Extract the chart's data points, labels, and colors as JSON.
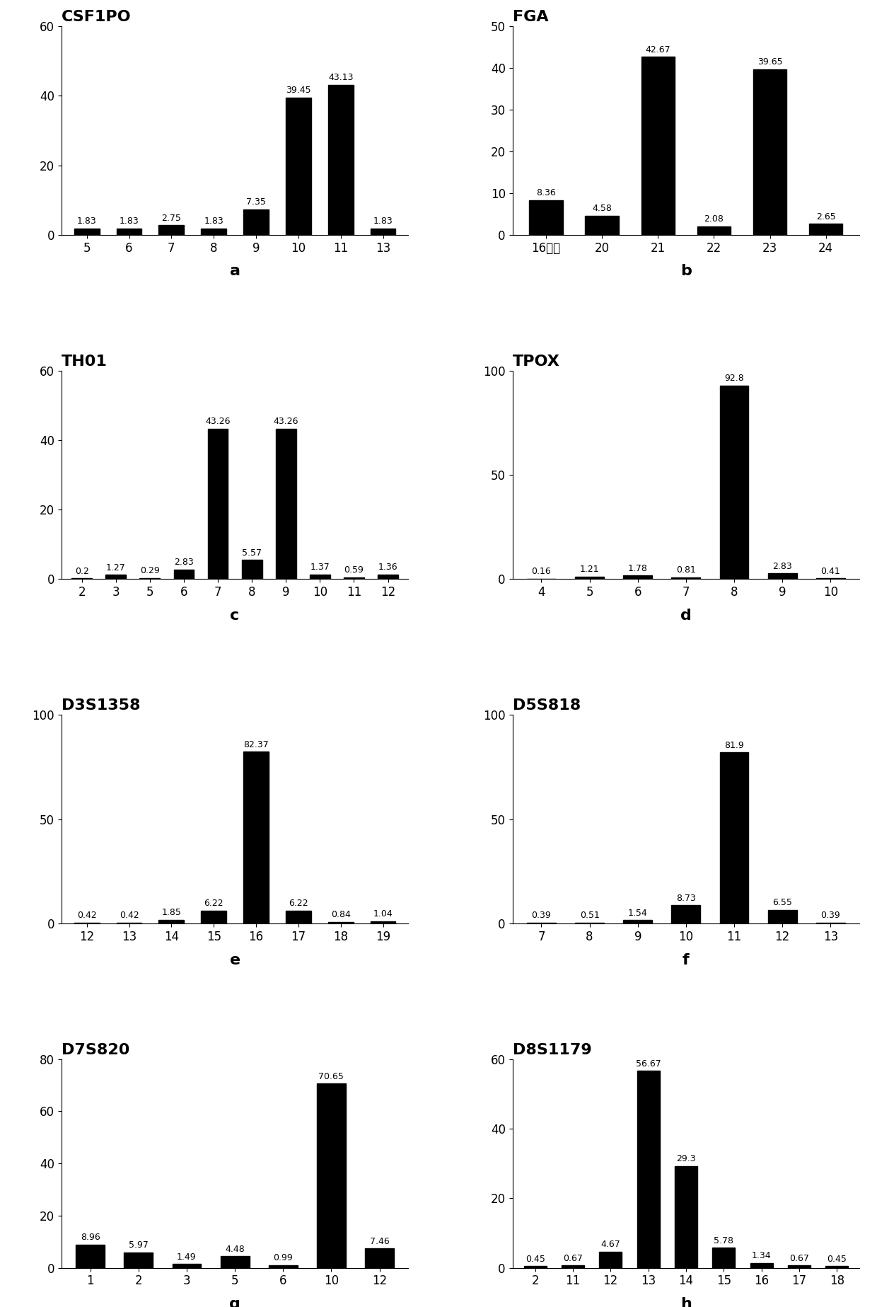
{
  "charts": [
    {
      "title": "CSF1PO",
      "label": "a",
      "categories": [
        "5",
        "6",
        "7",
        "8",
        "9",
        "10",
        "11",
        "13"
      ],
      "values": [
        1.83,
        1.83,
        2.75,
        1.83,
        7.35,
        39.45,
        43.13,
        1.83
      ],
      "ylim": [
        0,
        60
      ],
      "yticks": [
        0,
        20,
        40,
        60
      ]
    },
    {
      "title": "FGA",
      "label": "b",
      "categories": [
        "16以下",
        "20",
        "21",
        "22",
        "23",
        "24"
      ],
      "values": [
        8.36,
        4.58,
        42.67,
        2.08,
        39.65,
        2.65
      ],
      "ylim": [
        0,
        50
      ],
      "yticks": [
        0,
        10,
        20,
        30,
        40,
        50
      ]
    },
    {
      "title": "TH01",
      "label": "c",
      "categories": [
        "2",
        "3",
        "5",
        "6",
        "7",
        "8",
        "9",
        "10",
        "11",
        "12"
      ],
      "values": [
        0.2,
        1.27,
        0.29,
        2.83,
        43.26,
        5.57,
        43.26,
        1.37,
        0.59,
        1.36
      ],
      "ylim": [
        0,
        60
      ],
      "yticks": [
        0,
        20,
        40,
        60
      ]
    },
    {
      "title": "TPOX",
      "label": "d",
      "categories": [
        "4",
        "5",
        "6",
        "7",
        "8",
        "9",
        "10"
      ],
      "values": [
        0.16,
        1.21,
        1.78,
        0.81,
        92.8,
        2.83,
        0.41
      ],
      "ylim": [
        0,
        100
      ],
      "yticks": [
        0,
        50,
        100
      ]
    },
    {
      "title": "D3S1358",
      "label": "e",
      "categories": [
        "12",
        "13",
        "14",
        "15",
        "16",
        "17",
        "18",
        "19"
      ],
      "values": [
        0.42,
        0.42,
        1.85,
        6.22,
        82.37,
        6.22,
        0.84,
        1.04
      ],
      "ylim": [
        0,
        100
      ],
      "yticks": [
        0,
        50,
        100
      ]
    },
    {
      "title": "D5S818",
      "label": "f",
      "categories": [
        "7",
        "8",
        "9",
        "10",
        "11",
        "12",
        "13"
      ],
      "values": [
        0.39,
        0.51,
        1.54,
        8.73,
        81.9,
        6.55,
        0.39
      ],
      "ylim": [
        0,
        100
      ],
      "yticks": [
        0,
        50,
        100
      ]
    },
    {
      "title": "D7S820",
      "label": "g",
      "categories": [
        "1",
        "2",
        "3",
        "5",
        "6",
        "10",
        "12"
      ],
      "values": [
        8.96,
        5.97,
        1.49,
        4.48,
        0.99,
        70.65,
        7.46
      ],
      "ylim": [
        0,
        80
      ],
      "yticks": [
        0,
        20,
        40,
        60,
        80
      ]
    },
    {
      "title": "D8S1179",
      "label": "h",
      "categories": [
        "2",
        "11",
        "12",
        "13",
        "14",
        "15",
        "16",
        "17",
        "18"
      ],
      "values": [
        0.45,
        0.67,
        4.67,
        56.67,
        29.3,
        5.78,
        1.34,
        0.67,
        0.45
      ],
      "ylim": [
        0,
        60
      ],
      "yticks": [
        0,
        20,
        40,
        60
      ]
    }
  ],
  "bar_color": "#000000",
  "bar_width": 0.6,
  "title_fontsize": 16,
  "label_fontsize": 16,
  "tick_fontsize": 12,
  "value_fontsize": 9,
  "label_fontweight": "bold"
}
